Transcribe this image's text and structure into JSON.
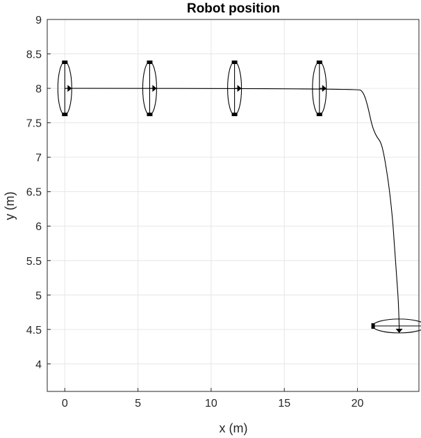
{
  "chart_data": {
    "type": "line",
    "title": "Robot position",
    "xlabel": "x (m)",
    "ylabel": "y (m)",
    "xlim": [
      -1.2,
      24.2
    ],
    "ylim": [
      3.6,
      9
    ],
    "xticks": [
      "0",
      "5",
      "10",
      "15",
      "20"
    ],
    "yticks": [
      "4",
      "4.5",
      "5",
      "5.5",
      "6",
      "6.5",
      "7",
      "7.5",
      "8",
      "8.5",
      "9"
    ],
    "grid": true,
    "series": [
      {
        "x": [
          0,
          20.0,
          20.4,
          20.7,
          21.0,
          21.3,
          21.6,
          21.8,
          22.0,
          22.2,
          22.4,
          22.5,
          22.6,
          22.7,
          22.8,
          22.85
        ],
        "y": [
          8.0,
          8.0,
          7.95,
          7.75,
          7.45,
          7.3,
          7.22,
          7.05,
          6.8,
          6.5,
          6.1,
          5.8,
          5.5,
          5.2,
          4.9,
          4.55
        ]
      }
    ],
    "robot_poses": [
      {
        "x": 0.0,
        "y": 8.0,
        "heading_deg": 0
      },
      {
        "x": 5.8,
        "y": 8.0,
        "heading_deg": 0
      },
      {
        "x": 11.6,
        "y": 8.0,
        "heading_deg": 0
      },
      {
        "x": 17.4,
        "y": 8.0,
        "heading_deg": 0
      },
      {
        "x": 22.85,
        "y": 4.55,
        "heading_deg": -90
      }
    ]
  },
  "colors": {
    "line": "#000000",
    "grid": "#e6e6e6",
    "axis": "#262626"
  }
}
